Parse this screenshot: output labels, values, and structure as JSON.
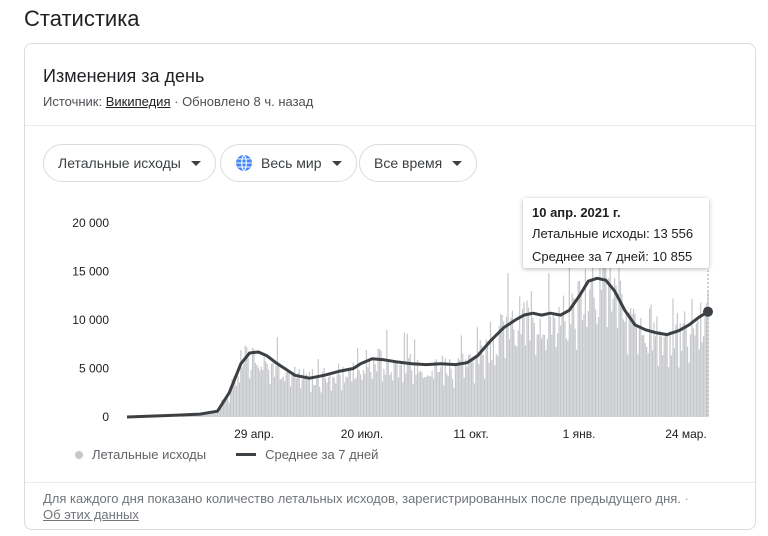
{
  "page_heading": "Статистика",
  "card": {
    "title": "Изменения за день",
    "source_prefix": "Источник:",
    "source_link": "Википедия",
    "updated": "· Обновлено 8 ч. назад"
  },
  "filters": {
    "metric": "Летальные исходы",
    "region": "Весь мир",
    "period": "Все время"
  },
  "tooltip": {
    "date": "10 апр. 2021 г.",
    "deaths_line": "Летальные исходы: 13 556",
    "avg_line": "Среднее за 7 дней: 10 855"
  },
  "legend": {
    "deaths": "Летальные исходы",
    "avg": "Среднее за 7 дней"
  },
  "footer": {
    "note": "Для каждого дня показано количество летальных исходов, зарегистрированных после предыдущего дня.",
    "about_link": "Об этих данных"
  },
  "colors": {
    "bars": "#c5c7ca",
    "line": "#3c4043",
    "accent_globe": "#4285f4"
  },
  "chart_data": {
    "type": "bar",
    "title": "",
    "xlabel": "",
    "ylabel": "",
    "ylim": [
      0,
      20000
    ],
    "y_ticks": [
      "20 000",
      "15 000",
      "10 000",
      "5 000",
      "0"
    ],
    "y_tick_values": [
      20000,
      15000,
      10000,
      5000,
      0
    ],
    "x_ticks": [
      "29 апр.",
      "20 июл.",
      "11 окт.",
      "1 янв.",
      "24 мар."
    ],
    "x_tick_days": [
      119,
      201,
      284,
      366,
      448
    ],
    "grid": false,
    "legend_position": "bottom",
    "series": [
      {
        "name": "Летальные исходы",
        "type": "bar",
        "note": "daily values, roughly daily bars around the 7-day average",
        "values_note": "bars drawn around the average curve"
      },
      {
        "name": "Среднее за 7 дней",
        "type": "line",
        "points": [
          {
            "day": 0,
            "value": 0
          },
          {
            "day": 35,
            "value": 200
          },
          {
            "day": 50,
            "value": 300
          },
          {
            "day": 62,
            "value": 600
          },
          {
            "day": 70,
            "value": 2500
          },
          {
            "day": 78,
            "value": 5500
          },
          {
            "day": 84,
            "value": 6600
          },
          {
            "day": 90,
            "value": 6700
          },
          {
            "day": 96,
            "value": 6300
          },
          {
            "day": 102,
            "value": 5600
          },
          {
            "day": 108,
            "value": 5000
          },
          {
            "day": 115,
            "value": 4300
          },
          {
            "day": 125,
            "value": 4000
          },
          {
            "day": 135,
            "value": 4300
          },
          {
            "day": 145,
            "value": 4700
          },
          {
            "day": 155,
            "value": 5000
          },
          {
            "day": 160,
            "value": 5500
          },
          {
            "day": 168,
            "value": 6000
          },
          {
            "day": 176,
            "value": 5900
          },
          {
            "day": 184,
            "value": 5700
          },
          {
            "day": 195,
            "value": 5500
          },
          {
            "day": 205,
            "value": 5400
          },
          {
            "day": 215,
            "value": 5500
          },
          {
            "day": 225,
            "value": 5400
          },
          {
            "day": 233,
            "value": 5600
          },
          {
            "day": 240,
            "value": 6300
          },
          {
            "day": 250,
            "value": 8000
          },
          {
            "day": 258,
            "value": 9200
          },
          {
            "day": 266,
            "value": 10000
          },
          {
            "day": 272,
            "value": 10500
          },
          {
            "day": 278,
            "value": 10700
          },
          {
            "day": 284,
            "value": 10500
          },
          {
            "day": 290,
            "value": 10700
          },
          {
            "day": 297,
            "value": 10500
          },
          {
            "day": 303,
            "value": 11000
          },
          {
            "day": 310,
            "value": 12500
          },
          {
            "day": 316,
            "value": 14000
          },
          {
            "day": 322,
            "value": 14300
          },
          {
            "day": 328,
            "value": 14100
          },
          {
            "day": 334,
            "value": 13000
          },
          {
            "day": 341,
            "value": 11000
          },
          {
            "day": 348,
            "value": 9500
          },
          {
            "day": 355,
            "value": 9000
          },
          {
            "day": 362,
            "value": 8700
          },
          {
            "day": 370,
            "value": 8500
          },
          {
            "day": 378,
            "value": 8900
          },
          {
            "day": 385,
            "value": 9500
          },
          {
            "day": 392,
            "value": 10300
          },
          {
            "day": 398,
            "value": 10855
          }
        ]
      }
    ],
    "highlight": {
      "date": "10 апр. 2021 г.",
      "deaths": 13556,
      "avg": 10855
    }
  }
}
